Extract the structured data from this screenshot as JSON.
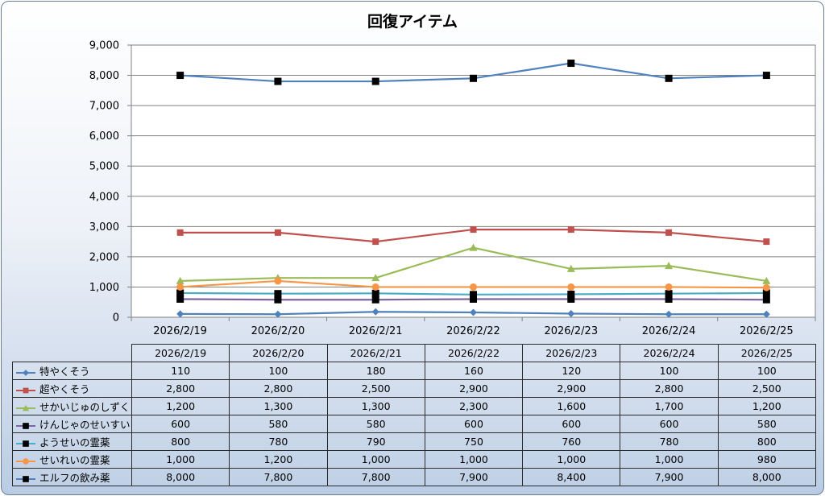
{
  "chart_data": {
    "type": "line",
    "title": "回復アイテム",
    "xlabel": "",
    "ylabel": "",
    "ylim": [
      0,
      9000
    ],
    "y_ticks": [
      "0",
      "1,000",
      "2,000",
      "3,000",
      "4,000",
      "5,000",
      "6,000",
      "7,000",
      "8,000",
      "9,000"
    ],
    "grid": true,
    "legend": "data-table",
    "categories": [
      "2026/2/19",
      "2026/2/20",
      "2026/2/21",
      "2026/2/22",
      "2026/2/23",
      "2026/2/24",
      "2026/2/25"
    ],
    "series": [
      {
        "name": "特やくそう",
        "color": "#4f81bd",
        "marker": "diamond",
        "values": [
          110,
          100,
          180,
          160,
          120,
          100,
          100
        ],
        "labels": [
          "110",
          "100",
          "180",
          "160",
          "120",
          "100",
          "100"
        ]
      },
      {
        "name": "超やくそう",
        "color": "#c0504d",
        "marker": "square",
        "values": [
          2800,
          2800,
          2500,
          2900,
          2900,
          2800,
          2500
        ],
        "labels": [
          "2,800",
          "2,800",
          "2,500",
          "2,900",
          "2,900",
          "2,800",
          "2,500"
        ]
      },
      {
        "name": "せかいじゅのしずく",
        "color": "#9bbb59",
        "marker": "triangle",
        "values": [
          1200,
          1300,
          1300,
          2300,
          1600,
          1700,
          1200
        ],
        "labels": [
          "1,200",
          "1,300",
          "1,300",
          "2,300",
          "1,600",
          "1,700",
          "1,200"
        ]
      },
      {
        "name": "けんじゃのせいすい",
        "color": "#8064a2",
        "marker": "square-black",
        "values": [
          600,
          580,
          580,
          600,
          600,
          600,
          580
        ],
        "labels": [
          "600",
          "580",
          "580",
          "600",
          "600",
          "600",
          "580"
        ]
      },
      {
        "name": "ようせいの霊薬",
        "color": "#4bacc6",
        "marker": "square-black",
        "values": [
          800,
          780,
          790,
          750,
          760,
          780,
          800
        ],
        "labels": [
          "800",
          "780",
          "790",
          "750",
          "760",
          "780",
          "800"
        ]
      },
      {
        "name": "せいれいの霊薬",
        "color": "#f79646",
        "marker": "circle",
        "values": [
          1000,
          1200,
          1000,
          1000,
          1000,
          1000,
          980
        ],
        "labels": [
          "1,000",
          "1,200",
          "1,000",
          "1,000",
          "1,000",
          "1,000",
          "980"
        ]
      },
      {
        "name": "エルフの飲み薬",
        "color": "#4f81bd",
        "marker": "square-black",
        "values": [
          8000,
          7800,
          7800,
          7900,
          8400,
          7900,
          8000
        ],
        "labels": [
          "8,000",
          "7,800",
          "7,800",
          "7,900",
          "8,400",
          "7,900",
          "8,000"
        ]
      }
    ]
  }
}
